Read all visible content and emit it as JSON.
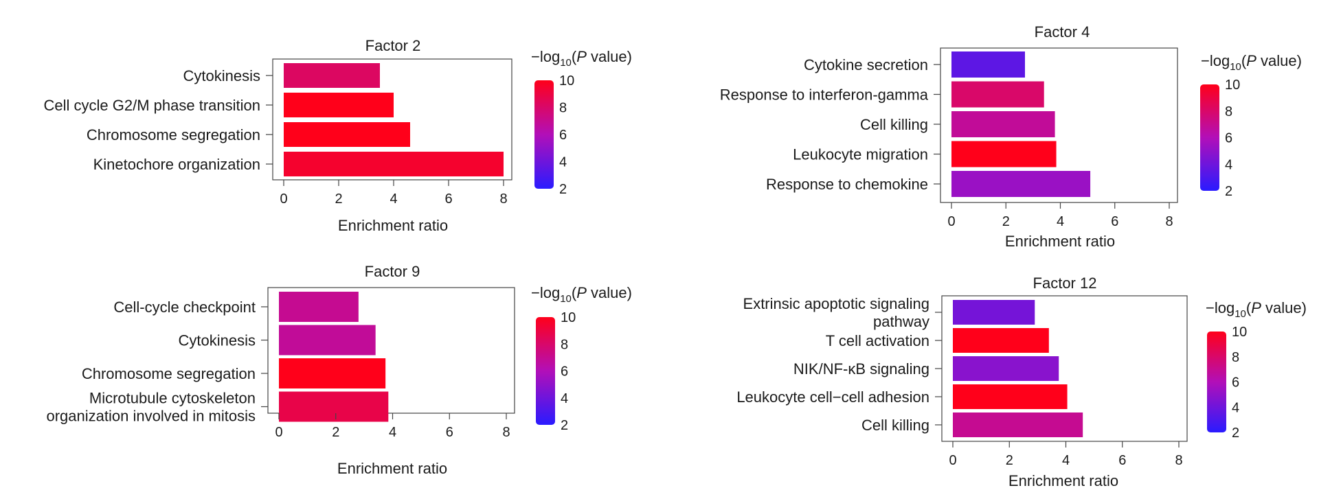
{
  "colorbar": {
    "label_prefix": "−log",
    "label_sub": "10",
    "label_open": "(",
    "label_italic": "P",
    "label_suffix": " value)",
    "ticks": [
      10,
      8,
      6,
      4,
      2
    ],
    "colors": {
      "low": "#2a1bff",
      "mid": "#b20fb8",
      "high": "#ff001a"
    }
  },
  "chart_data": [
    {
      "type": "bar",
      "orientation": "horizontal",
      "title": "Factor 2",
      "xlabel": "Enrichment ratio",
      "xlim": [
        0,
        8
      ],
      "xticks": [
        0,
        2,
        4,
        6,
        8
      ],
      "colorbar_range": [
        2,
        10
      ],
      "categories": [
        [
          "Cytokinesis"
        ],
        [
          "Cell cycle G2/M phase transition"
        ],
        [
          "Chromosome segregation"
        ],
        [
          "Kinetochore organization"
        ]
      ],
      "values": [
        3.5,
        4.0,
        4.6,
        8.0
      ],
      "neg_log10_p": [
        8.2,
        10,
        10,
        9.5
      ]
    },
    {
      "type": "bar",
      "orientation": "horizontal",
      "title": "Factor 4",
      "xlabel": "Enrichment ratio",
      "xlim": [
        0,
        8
      ],
      "xticks": [
        0,
        2,
        4,
        6,
        8
      ],
      "colorbar_range": [
        2,
        10
      ],
      "categories": [
        [
          "Cytokine secretion"
        ],
        [
          "Response to interferon-gamma"
        ],
        [
          "Cell killing"
        ],
        [
          "Leukocyte migration"
        ],
        [
          "Response to chemokine"
        ]
      ],
      "values": [
        2.7,
        3.4,
        3.8,
        3.85,
        5.1
      ],
      "neg_log10_p": [
        3.5,
        8.0,
        6.8,
        10,
        5.3
      ]
    },
    {
      "type": "bar",
      "orientation": "horizontal",
      "title": "Factor 9",
      "xlabel": "Enrichment ratio",
      "xlim": [
        0,
        8
      ],
      "xticks": [
        0,
        2,
        4,
        6,
        8
      ],
      "colorbar_range": [
        2,
        10
      ],
      "categories": [
        [
          "Cell-cycle checkpoint"
        ],
        [
          "Cytokinesis"
        ],
        [
          "Chromosome segregation"
        ],
        [
          "Microtubule cytoskeleton",
          "organization involved in mitosis"
        ]
      ],
      "values": [
        2.8,
        3.4,
        3.75,
        3.85
      ],
      "neg_log10_p": [
        7.0,
        6.8,
        10,
        8.8
      ]
    },
    {
      "type": "bar",
      "orientation": "horizontal",
      "title": "Factor 12",
      "xlabel": "Enrichment ratio",
      "xlim": [
        0,
        8
      ],
      "xticks": [
        0,
        2,
        4,
        6,
        8
      ],
      "colorbar_range": [
        2,
        10
      ],
      "categories": [
        [
          "Extrinsic apoptotic signaling",
          "pathway"
        ],
        [
          "T cell activation"
        ],
        [
          "NIK/NF-κB signaling"
        ],
        [
          "Leukocyte cell−cell adhesion"
        ],
        [
          "Cell killing"
        ]
      ],
      "values": [
        2.9,
        3.4,
        3.75,
        4.05,
        4.6
      ],
      "neg_log10_p": [
        4.2,
        10,
        4.8,
        10,
        7.0
      ]
    }
  ]
}
